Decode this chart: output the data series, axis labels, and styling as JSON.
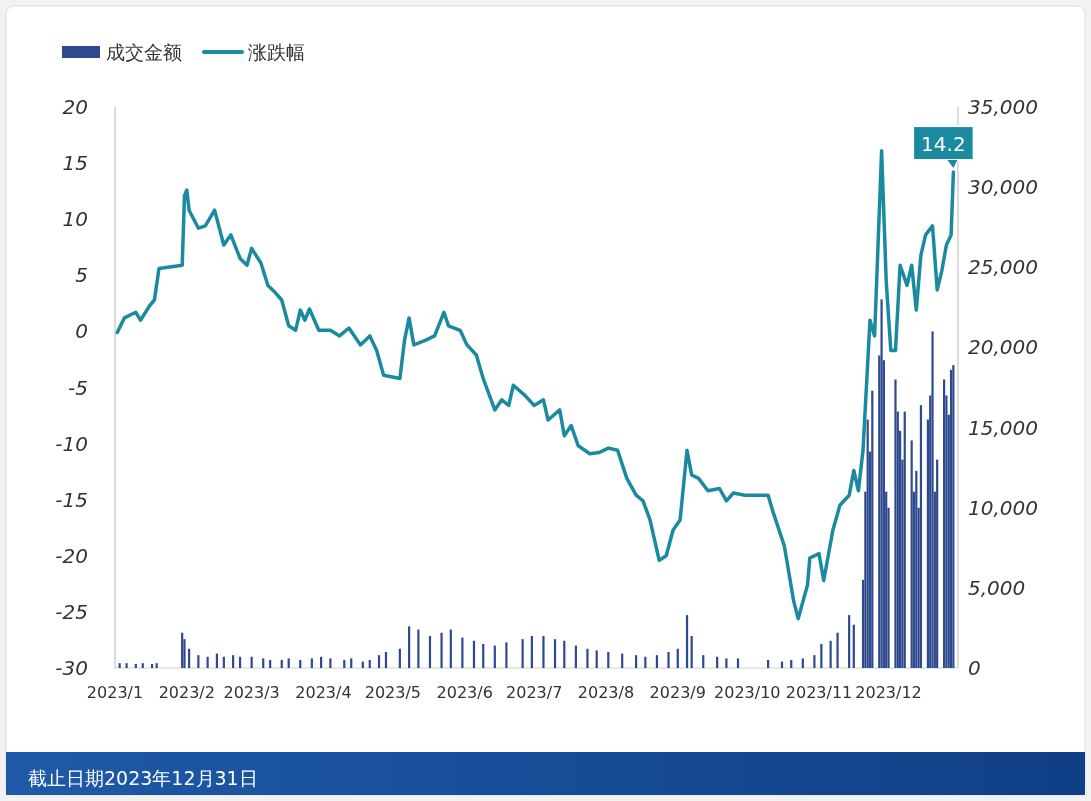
{
  "chart_data": {
    "type": "line",
    "legend": "top left",
    "grid": false,
    "xlim": [
      "2023-01-01",
      "2023-12-31"
    ],
    "xticks": [
      {
        "value": "2023-01-01",
        "label": "2023/1"
      },
      {
        "value": "2023-02-01",
        "label": "2023/2"
      },
      {
        "value": "2023-03-01",
        "label": "2023/3"
      },
      {
        "value": "2023-04-01",
        "label": "2023/4"
      },
      {
        "value": "2023-05-01",
        "label": "2023/5"
      },
      {
        "value": "2023-06-01",
        "label": "2023/6"
      },
      {
        "value": "2023-07-01",
        "label": "2023/7"
      },
      {
        "value": "2023-08-01",
        "label": "2023/8"
      },
      {
        "value": "2023-09-01",
        "label": "2023/9"
      },
      {
        "value": "2023-10-01",
        "label": "2023/10"
      },
      {
        "value": "2023-11-01",
        "label": "2023/11"
      },
      {
        "value": "2023-12-01",
        "label": "2023/12"
      }
    ],
    "ylim": [
      -30,
      20
    ],
    "yticks": [
      -30,
      -25,
      -20,
      -15,
      -10,
      -5,
      0,
      5,
      10,
      15,
      20
    ],
    "y2lim": [
      0,
      35000
    ],
    "y2ticks": [
      0,
      {
        "value": 5000,
        "label": "5,000"
      },
      {
        "value": 10000,
        "label": "10,000"
      },
      {
        "value": 15000,
        "label": "15,000"
      },
      {
        "value": 20000,
        "label": "20,000"
      },
      {
        "value": 25000,
        "label": "25,000"
      },
      {
        "value": 30000,
        "label": "30,000"
      },
      {
        "value": 35000,
        "label": "35,000"
      }
    ],
    "series": [
      {
        "name": "成交金额",
        "type": "bar",
        "axis": "y2",
        "color": "#2e4a8f",
        "x": [
          "2023-01-03",
          "2023-01-06",
          "2023-01-10",
          "2023-01-13",
          "2023-01-17",
          "2023-01-19",
          "2023-01-30",
          "2023-01-31",
          "2023-02-02",
          "2023-02-06",
          "2023-02-10",
          "2023-02-14",
          "2023-02-17",
          "2023-02-21",
          "2023-02-24",
          "2023-03-01",
          "2023-03-06",
          "2023-03-09",
          "2023-03-14",
          "2023-03-17",
          "2023-03-22",
          "2023-03-27",
          "2023-03-31",
          "2023-04-04",
          "2023-04-10",
          "2023-04-13",
          "2023-04-18",
          "2023-04-21",
          "2023-04-25",
          "2023-04-28",
          "2023-05-04",
          "2023-05-08",
          "2023-05-12",
          "2023-05-17",
          "2023-05-22",
          "2023-05-26",
          "2023-05-31",
          "2023-06-05",
          "2023-06-09",
          "2023-06-14",
          "2023-06-19",
          "2023-06-26",
          "2023-06-30",
          "2023-07-05",
          "2023-07-10",
          "2023-07-14",
          "2023-07-19",
          "2023-07-24",
          "2023-07-28",
          "2023-08-02",
          "2023-08-08",
          "2023-08-14",
          "2023-08-18",
          "2023-08-23",
          "2023-08-28",
          "2023-09-01",
          "2023-09-05",
          "2023-09-07",
          "2023-09-12",
          "2023-09-18",
          "2023-09-22",
          "2023-09-27",
          "2023-10-10",
          "2023-10-16",
          "2023-10-20",
          "2023-10-25",
          "2023-10-30",
          "2023-11-02",
          "2023-11-06",
          "2023-11-09",
          "2023-11-14",
          "2023-11-16",
          "2023-11-20",
          "2023-11-21",
          "2023-11-22",
          "2023-11-23",
          "2023-11-24",
          "2023-11-27",
          "2023-11-28",
          "2023-11-29",
          "2023-11-30",
          "2023-12-01",
          "2023-12-04",
          "2023-12-05",
          "2023-12-06",
          "2023-12-07",
          "2023-12-08",
          "2023-12-11",
          "2023-12-12",
          "2023-12-13",
          "2023-12-14",
          "2023-12-15",
          "2023-12-18",
          "2023-12-19",
          "2023-12-20",
          "2023-12-21",
          "2023-12-22",
          "2023-12-25",
          "2023-12-26",
          "2023-12-27",
          "2023-12-28",
          "2023-12-29"
        ],
        "values": [
          300,
          300,
          250,
          300,
          250,
          300,
          2200,
          1800,
          1200,
          800,
          700,
          900,
          700,
          800,
          700,
          700,
          600,
          500,
          500,
          600,
          500,
          600,
          700,
          600,
          500,
          600,
          400,
          500,
          800,
          1000,
          1200,
          2600,
          2400,
          2000,
          2200,
          2400,
          1900,
          1700,
          1500,
          1400,
          1600,
          1800,
          2000,
          2000,
          1800,
          1700,
          1400,
          1200,
          1100,
          1000,
          900,
          800,
          700,
          800,
          1000,
          1200,
          3300,
          2000,
          800,
          700,
          600,
          600,
          500,
          400,
          500,
          600,
          800,
          1500,
          1700,
          2200,
          3300,
          2700,
          5500,
          11000,
          15500,
          13500,
          17300,
          19500,
          23000,
          19200,
          11000,
          10000,
          18000,
          16000,
          14800,
          13000,
          16000,
          14200,
          11000,
          12300,
          10000,
          16400,
          15500,
          17000,
          21000,
          11000,
          13000,
          18000,
          17000,
          15800,
          18600,
          18900
        ]
      },
      {
        "name": "涨跌幅",
        "color": "#1b8aa0",
        "marker": "none",
        "line_style": "solid",
        "x": [
          "2023-01-02",
          "2023-01-05",
          "2023-01-10",
          "2023-01-12",
          "2023-01-16",
          "2023-01-18",
          "2023-01-20",
          "2023-01-30",
          "2023-01-31",
          "2023-02-01",
          "2023-02-02",
          "2023-02-06",
          "2023-02-09",
          "2023-02-13",
          "2023-02-17",
          "2023-02-20",
          "2023-02-24",
          "2023-02-27",
          "2023-03-01",
          "2023-03-05",
          "2023-03-08",
          "2023-03-11",
          "2023-03-14",
          "2023-03-17",
          "2023-03-20",
          "2023-03-22",
          "2023-03-24",
          "2023-03-26",
          "2023-03-30",
          "2023-04-04",
          "2023-04-08",
          "2023-04-12",
          "2023-04-17",
          "2023-04-21",
          "2023-04-24",
          "2023-04-27",
          "2023-05-04",
          "2023-05-06",
          "2023-05-08",
          "2023-05-10",
          "2023-05-15",
          "2023-05-19",
          "2023-05-23",
          "2023-05-25",
          "2023-05-30",
          "2023-06-02",
          "2023-06-06",
          "2023-06-09",
          "2023-06-14",
          "2023-06-17",
          "2023-06-20",
          "2023-06-22",
          "2023-06-27",
          "2023-07-01",
          "2023-07-05",
          "2023-07-07",
          "2023-07-12",
          "2023-07-14",
          "2023-07-17",
          "2023-07-20",
          "2023-07-25",
          "2023-07-29",
          "2023-08-02",
          "2023-08-06",
          "2023-08-10",
          "2023-08-14",
          "2023-08-17",
          "2023-08-20",
          "2023-08-24",
          "2023-08-27",
          "2023-08-30",
          "2023-09-02",
          "2023-09-05",
          "2023-09-07",
          "2023-09-10",
          "2023-09-14",
          "2023-09-19",
          "2023-09-22",
          "2023-09-25",
          "2023-09-30",
          "2023-10-10",
          "2023-10-12",
          "2023-10-17",
          "2023-10-21",
          "2023-10-23",
          "2023-10-27",
          "2023-10-28",
          "2023-11-01",
          "2023-11-03",
          "2023-11-07",
          "2023-11-10",
          "2023-11-14",
          "2023-11-16",
          "2023-11-18",
          "2023-11-20",
          "2023-11-23",
          "2023-11-25",
          "2023-11-28",
          "2023-11-30",
          "2023-12-02",
          "2023-12-04",
          "2023-12-06",
          "2023-12-09",
          "2023-12-11",
          "2023-12-13",
          "2023-12-15",
          "2023-12-17",
          "2023-12-20",
          "2023-12-22",
          "2023-12-24",
          "2023-12-26",
          "2023-12-28",
          "2023-12-29"
        ],
        "values": [
          -0.1,
          1.2,
          1.7,
          1.0,
          2.3,
          2.8,
          5.6,
          5.9,
          12.1,
          12.6,
          10.8,
          9.2,
          9.4,
          10.8,
          7.7,
          8.6,
          6.5,
          5.9,
          7.4,
          6.1,
          4.1,
          3.5,
          2.8,
          0.5,
          0.1,
          1.9,
          1.0,
          2.0,
          0.1,
          0.1,
          -0.4,
          0.3,
          -1.2,
          -0.4,
          -1.7,
          -3.9,
          -4.2,
          -0.8,
          1.2,
          -1.2,
          -0.8,
          -0.4,
          1.7,
          0.5,
          0.1,
          -1.2,
          -2.1,
          -4.2,
          -7.0,
          -6.1,
          -6.6,
          -4.8,
          -5.7,
          -6.6,
          -6.1,
          -7.9,
          -7.0,
          -9.3,
          -8.4,
          -10.2,
          -10.9,
          -10.8,
          -10.4,
          -10.6,
          -13.1,
          -14.6,
          -15.1,
          -16.8,
          -20.4,
          -20.0,
          -17.7,
          -16.8,
          -10.6,
          -12.8,
          -13.1,
          -14.2,
          -14.0,
          -15.1,
          -14.4,
          -14.6,
          -14.6,
          -16.0,
          -19.1,
          -24.0,
          -25.6,
          -22.6,
          -20.2,
          -19.8,
          -22.2,
          -17.7,
          -15.5,
          -14.6,
          -12.4,
          -14.2,
          -10.6,
          1.0,
          -0.4,
          16.1,
          4.5,
          -1.7,
          -1.7,
          5.9,
          4.1,
          5.9,
          1.9,
          6.8,
          8.6,
          9.4,
          3.7,
          5.4,
          7.7,
          8.6,
          14.2
        ]
      }
    ],
    "annotations": [
      {
        "text": "14.2",
        "x": "2023-12-29",
        "y": 14.2
      },
      "截止日期2023年12月31日"
    ]
  }
}
